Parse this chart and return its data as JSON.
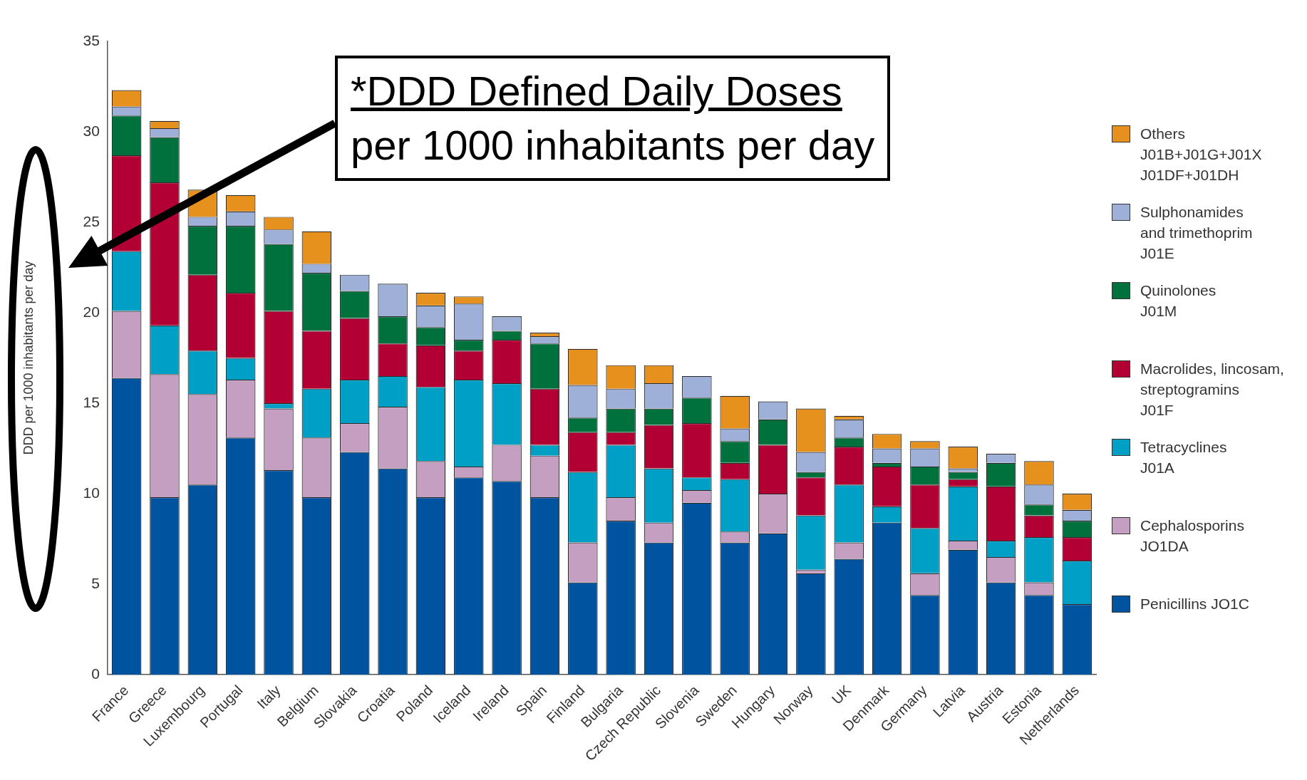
{
  "chart_data": {
    "type": "bar",
    "stacked": true,
    "ylabel": "DDD per 1000 inhabitants per day",
    "categories": [
      "France",
      "Greece",
      "Luxembourg",
      "Portugal",
      "Italy",
      "Belgium",
      "Slovakia",
      "Croatia",
      "Poland",
      "Iceland",
      "Ireland",
      "Spain",
      "Finland",
      "Bulgaria",
      "Czech Republic",
      "Slovenia",
      "Sweden",
      "Hungary",
      "Norway",
      "UK",
      "Denmark",
      "Germany",
      "Latvia",
      "Austria",
      "Estonia",
      "Netherlands"
    ],
    "series": [
      {
        "name": "Penicillins JO1C",
        "color": "#00539f",
        "values": [
          16.4,
          9.8,
          10.5,
          13.1,
          11.3,
          9.8,
          12.3,
          11.4,
          9.8,
          10.9,
          10.7,
          9.8,
          5.1,
          8.5,
          7.3,
          9.5,
          7.3,
          7.8,
          5.6,
          6.4,
          8.4,
          4.4,
          6.9,
          5.1,
          4.4,
          3.9
        ]
      },
      {
        "name": "Cephalosporins\nJO1DA",
        "color": "#c59fc1",
        "values": [
          3.7,
          6.8,
          5.0,
          3.2,
          3.4,
          3.3,
          1.6,
          3.4,
          2.0,
          0.6,
          2.0,
          2.3,
          2.2,
          1.3,
          1.1,
          0.7,
          0.6,
          2.2,
          0.2,
          0.9,
          0,
          1.2,
          0.5,
          1.4,
          0.7,
          0
        ]
      },
      {
        "name": "Tetracyclines\nJ01A",
        "color": "#00a0c6",
        "values": [
          3.3,
          2.7,
          2.4,
          1.2,
          0.3,
          2.7,
          2.4,
          1.7,
          4.1,
          4.8,
          3.4,
          0.6,
          3.9,
          2.9,
          3.0,
          0.7,
          2.9,
          0,
          3.0,
          3.2,
          0.9,
          2.5,
          3.0,
          0.9,
          2.5,
          2.4
        ]
      },
      {
        "name": "Macrolides, lincosam,\nstreptogramins\nJ01F",
        "color": "#b20035",
        "values": [
          5.3,
          7.9,
          4.2,
          3.6,
          5.1,
          3.2,
          3.4,
          1.8,
          2.3,
          1.6,
          2.4,
          3.1,
          2.2,
          0.7,
          2.4,
          3.0,
          0.9,
          2.7,
          2.1,
          2.1,
          2.2,
          2.4,
          0.4,
          3.0,
          1.2,
          1.3
        ]
      },
      {
        "name": "Quinolones\nJ01M",
        "color": "#00703c",
        "values": [
          2.2,
          2.5,
          2.7,
          3.7,
          3.7,
          3.2,
          1.5,
          1.5,
          1.0,
          0.6,
          0.5,
          2.5,
          0.8,
          1.3,
          0.9,
          1.4,
          1.2,
          1.4,
          0.3,
          0.5,
          0.2,
          1.0,
          0.4,
          1.3,
          0.6,
          0.9
        ]
      },
      {
        "name": "Sulphonamides\nand trimethoprim\nJ01E",
        "color": "#9fb0d8",
        "values": [
          0.5,
          0.5,
          0.5,
          0.8,
          0.8,
          0.5,
          0.9,
          1.8,
          1.2,
          2.0,
          0.8,
          0.4,
          1.8,
          1.1,
          1.4,
          1.2,
          0.7,
          1.0,
          1.1,
          1.0,
          0.8,
          1.0,
          0.2,
          0.5,
          1.1,
          0.6
        ]
      },
      {
        "name": "Others\nJ01B+J01G+J01X\nJ01DF+J01DH",
        "color": "#e6901e",
        "values": [
          0.9,
          0.4,
          1.5,
          0.9,
          0.7,
          1.8,
          0,
          0,
          0.7,
          0.4,
          0,
          0.2,
          2.0,
          1.3,
          1.0,
          0,
          1.8,
          0,
          2.4,
          0.2,
          0.8,
          0.4,
          1.2,
          0,
          1.3,
          0.9
        ]
      }
    ],
    "ylim": [
      0,
      35
    ],
    "yticks": [
      0,
      5,
      10,
      15,
      20,
      25,
      30,
      35
    ],
    "grid": false,
    "legend": "right",
    "annotations": [
      "*DDD Defined Daily Doses\nper 1000 inhabitants per day"
    ]
  }
}
